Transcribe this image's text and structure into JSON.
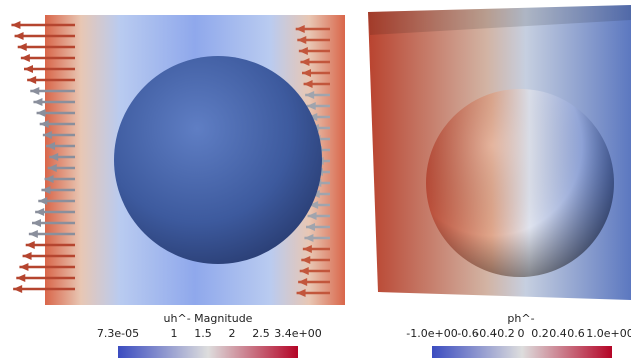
{
  "left_panel": {
    "colorbar": {
      "title": "uh^- Magnitude",
      "labels": [
        "7.3e-05",
        "1",
        "1.5",
        "2",
        "2.5",
        "3.4e+00"
      ]
    }
  },
  "right_panel": {
    "colorbar": {
      "title": "ph^-",
      "labels": [
        "-1.0e+00",
        "-0.6",
        "-0.4",
        "-0.2",
        "0",
        "0.2",
        "0.4",
        "0.6",
        "1.0e+00"
      ]
    }
  }
}
